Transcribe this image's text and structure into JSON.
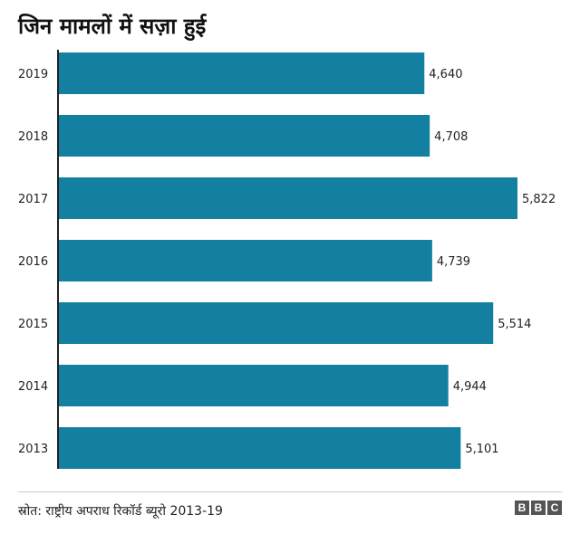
{
  "header": {
    "title": "जिन मामलों में सज़ा हुई"
  },
  "footer": {
    "source": "स्रोत: राष्ट्रीय अपराध रिकॉर्ड ब्यूरो 2013-19",
    "logo_letters": [
      "B",
      "B",
      "C"
    ]
  },
  "chart_data": {
    "type": "bar",
    "orientation": "horizontal",
    "title": "जिन मामलों में सज़ा हुई",
    "categories": [
      "2019",
      "2018",
      "2017",
      "2016",
      "2015",
      "2014",
      "2013"
    ],
    "values": [
      4640,
      4708,
      5822,
      4739,
      5514,
      4944,
      5101
    ],
    "value_labels": [
      "4,640",
      "4,708",
      "5,822",
      "4,739",
      "5,514",
      "4,944",
      "5,101"
    ],
    "bar_color": "#1380a1",
    "xlim": [
      0,
      5822
    ],
    "grid": false,
    "legend": "none"
  }
}
